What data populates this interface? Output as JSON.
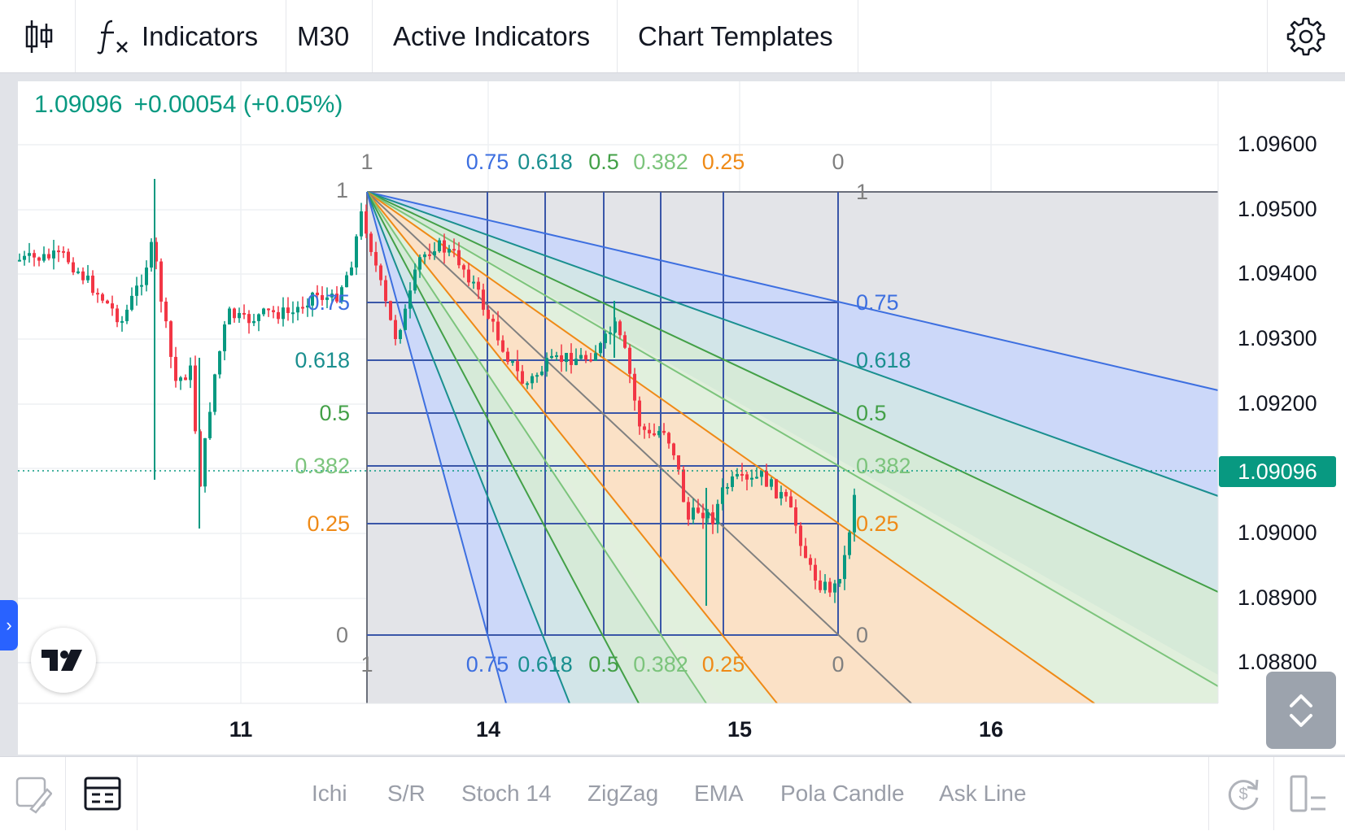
{
  "toolbar": {
    "indicators_label": "Indicators",
    "timeframe_label": "M30",
    "active_indicators_label": "Active Indicators",
    "chart_templates_label": "Chart Templates"
  },
  "legend": {
    "price": "1.09096",
    "change": "+0.00054 (+0.05%)"
  },
  "price_scale": {
    "labels": [
      "1.09600",
      "1.09500",
      "1.09400",
      "1.09300",
      "1.09200",
      "1.09000",
      "1.08900",
      "1.08800"
    ],
    "current_price_badge": "1.09096"
  },
  "time_scale": {
    "labels": [
      "11",
      "14",
      "15",
      "16"
    ]
  },
  "fib_fan": {
    "left_labels": [
      "1",
      "0.75",
      "0.618",
      "0.5",
      "0.382",
      "0.25",
      "0"
    ],
    "top_labels": [
      "1",
      "0.75",
      "0.618",
      "0.5",
      "0.382",
      "0.25",
      "0"
    ],
    "bottom_labels": [
      "1",
      "0.75",
      "0.618",
      "0.5",
      "0.382",
      "0.25",
      "0"
    ],
    "right_labels": [
      "1",
      "0.75",
      "0.618",
      "0.5",
      "0.382",
      "0.25",
      "0"
    ],
    "level_colors": {
      "0.75": "#3d6fe0",
      "0.618": "#1a8f8f",
      "0.5": "#43a047",
      "0.382": "#7cc47c",
      "0.25": "#ef8a17",
      "0": "#808080",
      "1": "#808080"
    }
  },
  "colors": {
    "up_candle": "#089981",
    "down_candle": "#f23645",
    "accent": "#2962ff"
  },
  "bottom_bar": {
    "chips": [
      "Ichi",
      "S/R",
      "Stoch 14",
      "ZigZag",
      "EMA",
      "Pola Candle",
      "Ask Line"
    ]
  },
  "icons": [
    "candles-icon",
    "function-icon",
    "gear-icon",
    "drawing-pen-icon",
    "data-window-icon",
    "tradingview-logo-icon",
    "scroll-updown-icon",
    "refresh-icon",
    "layout-icon",
    "chevron-right-icon"
  ]
}
